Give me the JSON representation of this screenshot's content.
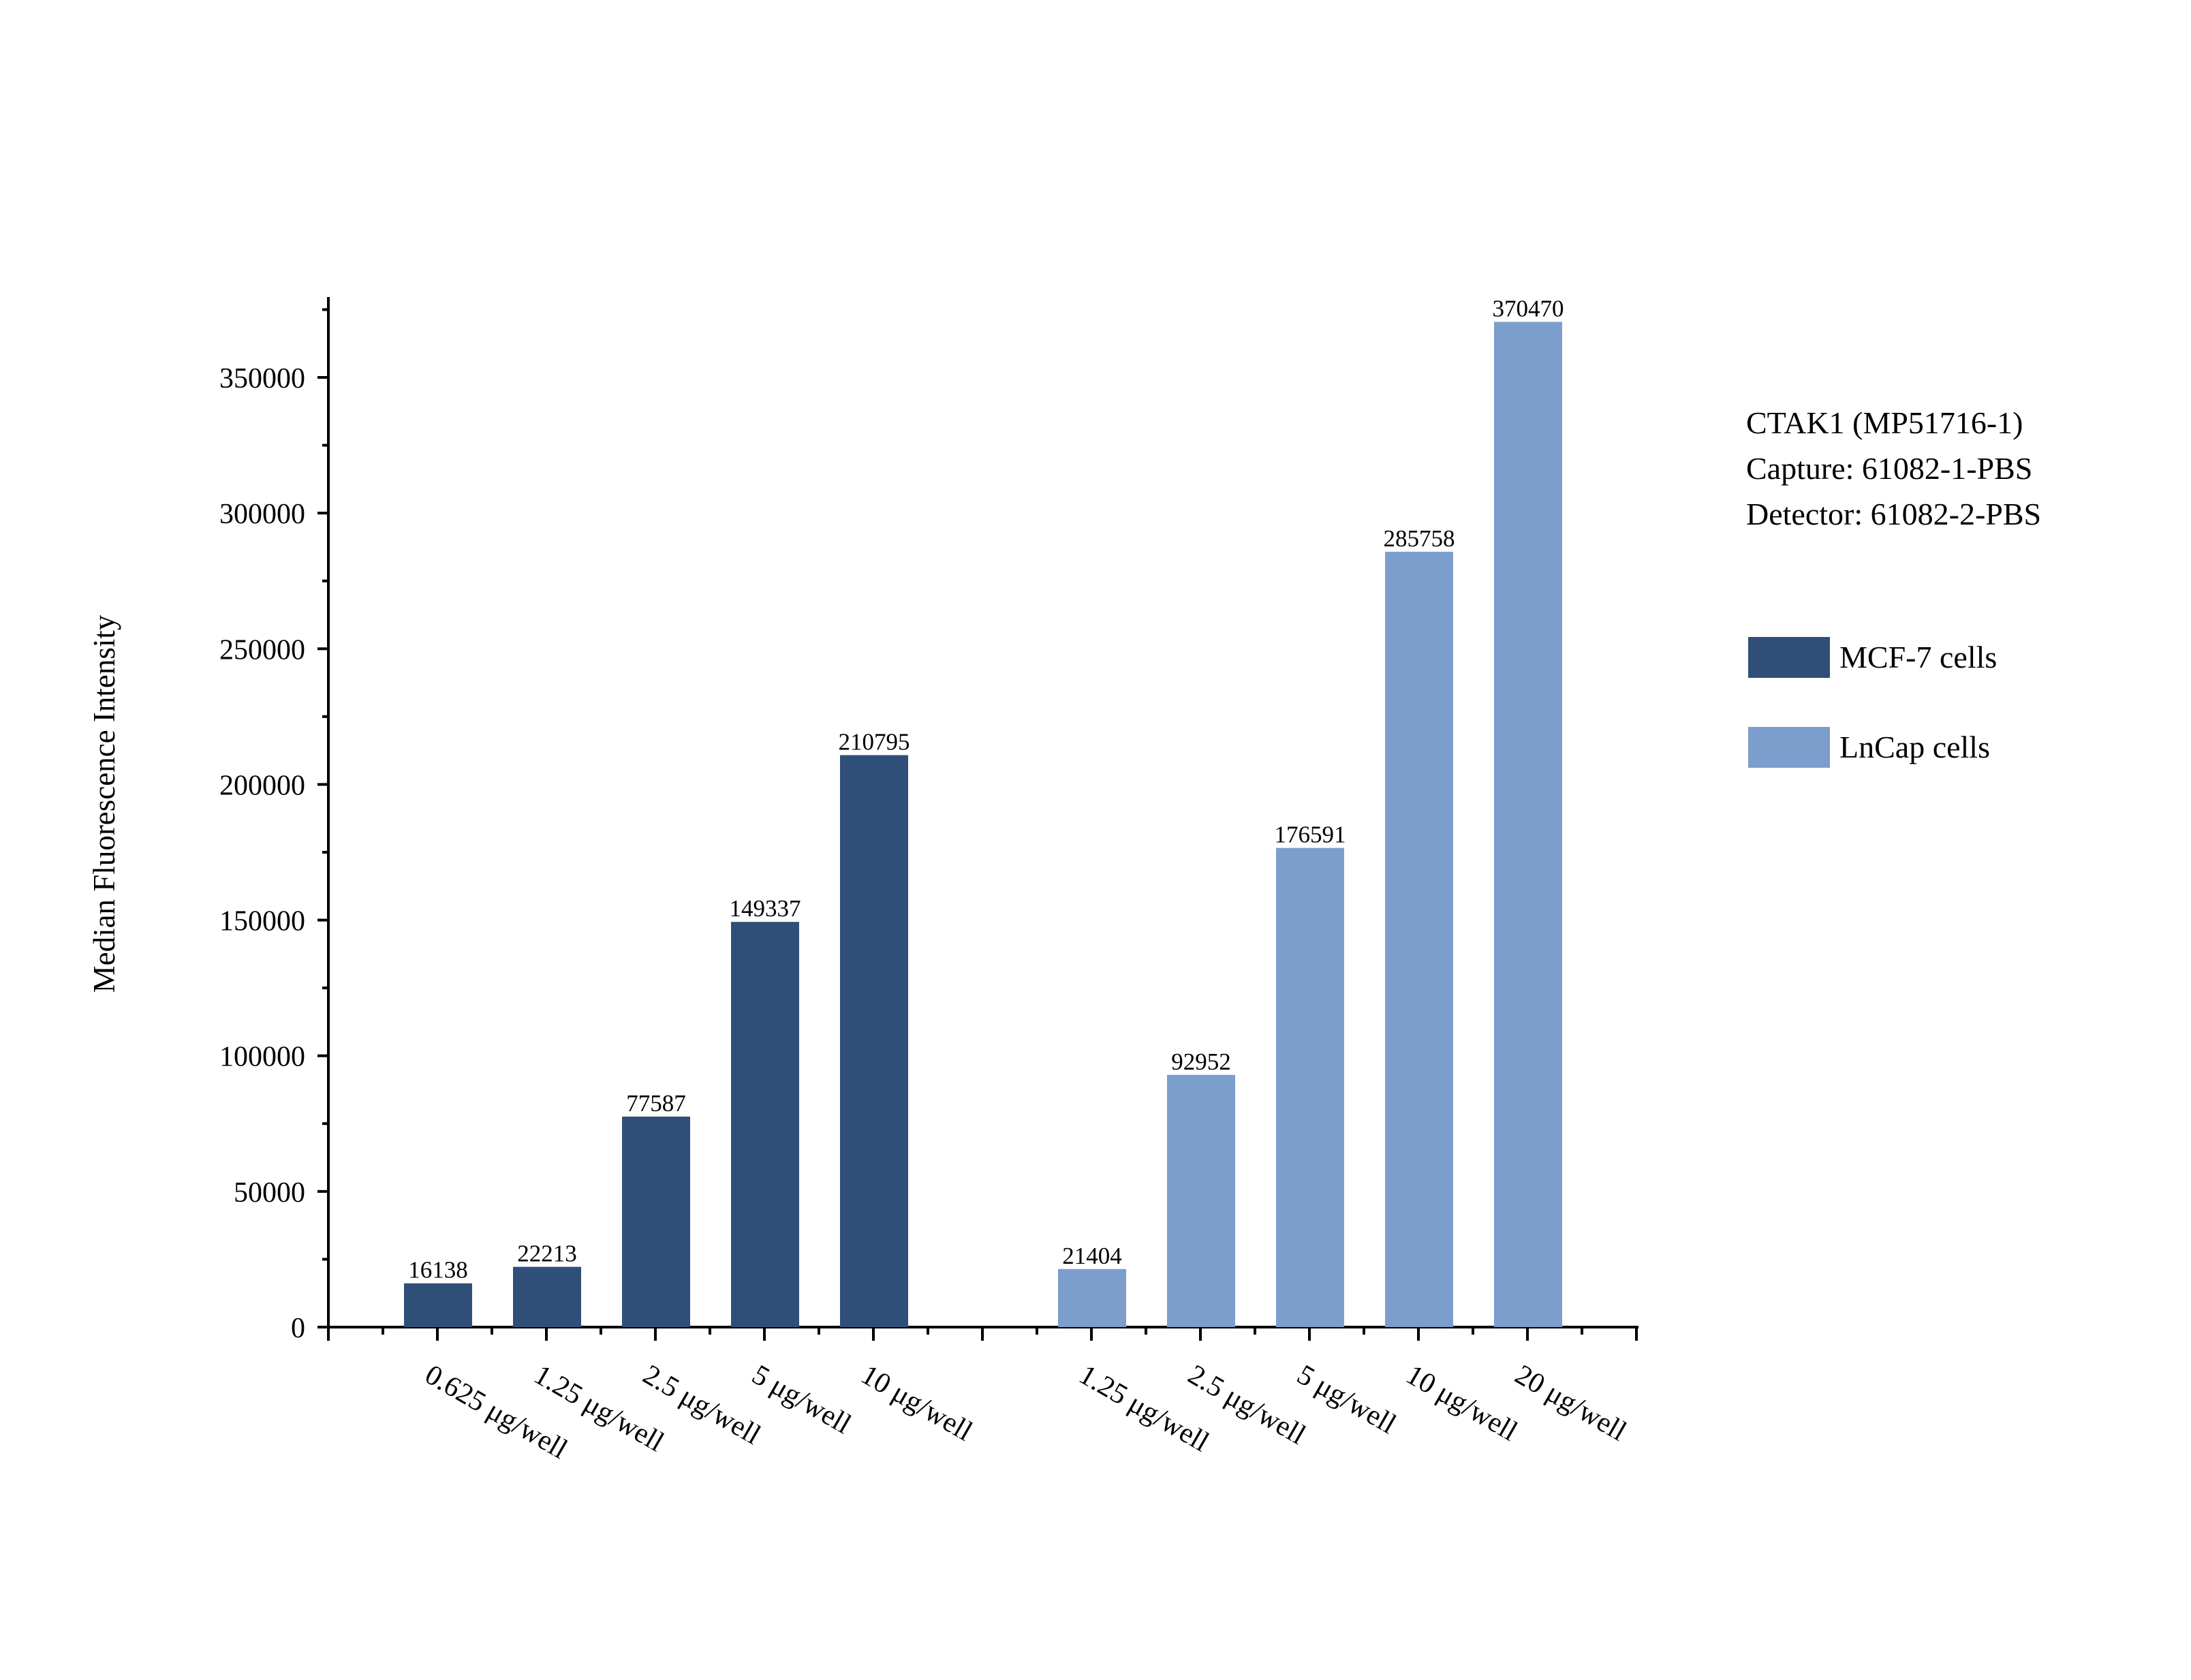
{
  "chart_data": {
    "type": "bar",
    "ylabel": "Median Fluorescence Intensity",
    "ylim": [
      0,
      380000
    ],
    "y_ticks": [
      0,
      50000,
      100000,
      150000,
      200000,
      250000,
      300000,
      350000
    ],
    "y_tick_labels": [
      "0",
      "50000",
      "100000",
      "150000",
      "200000",
      "250000",
      "300000",
      "350000"
    ],
    "grid": false,
    "legend_position": "right",
    "annotation": [
      "CTAK1 (MP51716-1)",
      "Capture: 61082-1-PBS",
      "Detector: 61082-2-PBS"
    ],
    "series": [
      {
        "name": "MCF-7 cells",
        "color": "#2f4f79",
        "categories": [
          "0.625 μg/well",
          "1.25 μg/well",
          "2.5 μg/well",
          "5 μg/well",
          "10 μg/well"
        ],
        "values": [
          16138,
          22213,
          77587,
          149337,
          210795
        ],
        "labels": [
          "16138",
          "22213",
          "77587",
          "149337",
          "210795"
        ]
      },
      {
        "name": "LnCap cells",
        "color": "#7b9ecc",
        "categories": [
          "1.25 μg/well",
          "2.5 μg/well",
          "5 μg/well",
          "10 μg/well",
          "20 μg/well"
        ],
        "values": [
          21404,
          92952,
          176591,
          285758,
          370470
        ],
        "labels": [
          "21404",
          "92952",
          "176591",
          "285758",
          "370470"
        ]
      }
    ]
  }
}
